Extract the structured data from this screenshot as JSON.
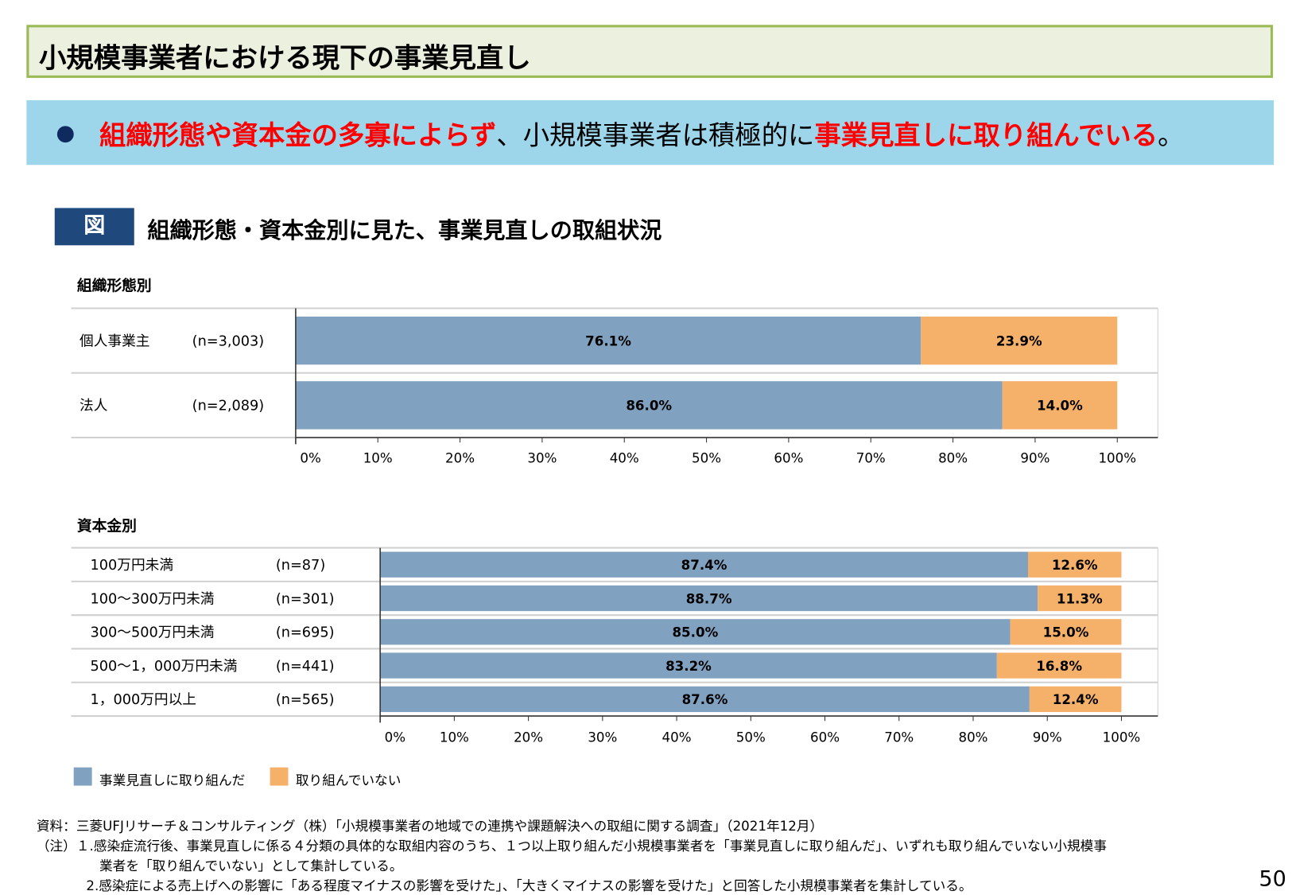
{
  "header": {
    "title": "小規模事業者における現下の事業見直し"
  },
  "banner": {
    "red1": "組織形態や資本金の多寡によらず",
    "black": "、小規模事業者は積極的に",
    "red2": "事業見直しに取り組んでいる",
    "end": "。"
  },
  "figure": {
    "badge": "図",
    "title": "組織形態・資本金別に見た、事業見直しの取組状況"
  },
  "colors": {
    "done": "#81a1c1",
    "not_done": "#f5b06a",
    "banner": "#9dd6ea",
    "title_border": "#9bbb59"
  },
  "chart_data": [
    {
      "type": "bar",
      "stacked": true,
      "orientation": "horizontal",
      "title": "組織形態別",
      "categories": [
        "個人事業主",
        "法人"
      ],
      "n_labels": [
        "(n=3,003)",
        "(n=2,089)"
      ],
      "series": [
        {
          "name": "事業見直しに取り組んだ",
          "values": [
            76.1,
            86.0
          ]
        },
        {
          "name": "取り組んでいない",
          "values": [
            23.9,
            14.0
          ]
        }
      ],
      "xlim": [
        0,
        100
      ],
      "xticks": [
        "0%",
        "10%",
        "20%",
        "30%",
        "40%",
        "50%",
        "60%",
        "70%",
        "80%",
        "90%",
        "100%"
      ]
    },
    {
      "type": "bar",
      "stacked": true,
      "orientation": "horizontal",
      "title": "資本金別",
      "categories": [
        "100万円未満",
        "100～300万円未満",
        "300～500万円未満",
        "500～1，000万円未満",
        "1，000万円以上"
      ],
      "n_labels": [
        "(n=87)",
        "(n=301)",
        "(n=695)",
        "(n=441)",
        "(n=565)"
      ],
      "series": [
        {
          "name": "事業見直しに取り組んだ",
          "values": [
            87.4,
            88.7,
            85.0,
            83.2,
            87.6
          ]
        },
        {
          "name": "取り組んでいない",
          "values": [
            12.6,
            11.3,
            15.0,
            16.8,
            12.4
          ]
        }
      ],
      "xlim": [
        0,
        100
      ],
      "xticks": [
        "0%",
        "10%",
        "20%",
        "30%",
        "40%",
        "50%",
        "60%",
        "70%",
        "80%",
        "90%",
        "100%"
      ]
    }
  ],
  "legend": [
    "事業見直しに取り組んだ",
    "取り組んでいない"
  ],
  "notes": {
    "source": "資料：三菱UFJリサーチ＆コンサルティング（株）「小規模事業者の地域での連携や課題解決への取組に関する調査」（2021年12月）",
    "note1a": "（注）１.感染症流行後、事業見直しに係る４分類の具体的な取組内容のうち、１つ以上取り組んだ小規模事業者を「事業見直しに取り組んだ」、いずれも取り組んでいない小規模事",
    "note1b": "業者を「取り組んでいない」として集計している。",
    "note2": "2.感染症による売上げへの影響に「ある程度マイナスの影響を受けた」、「大きくマイナスの影響を受けた」と回答した小規模事業者を集計している。"
  },
  "page_number": "50"
}
